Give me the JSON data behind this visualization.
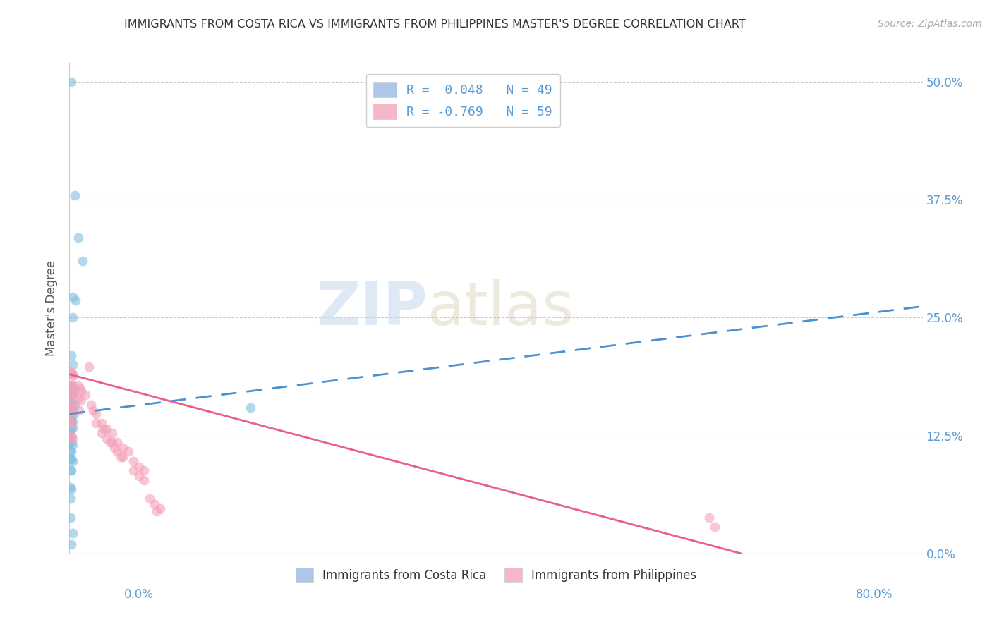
{
  "title": "IMMIGRANTS FROM COSTA RICA VS IMMIGRANTS FROM PHILIPPINES MASTER'S DEGREE CORRELATION CHART",
  "source": "Source: ZipAtlas.com",
  "ylabel": "Master's Degree",
  "yticks": [
    0.0,
    0.125,
    0.25,
    0.375,
    0.5
  ],
  "ytick_labels": [
    "0.0%",
    "12.5%",
    "25.0%",
    "37.5%",
    "50.0%"
  ],
  "xlim": [
    0.0,
    0.8
  ],
  "ylim": [
    0.0,
    0.52
  ],
  "watermark_text": "ZIP",
  "watermark_text2": "atlas",
  "costa_rica_color": "#7fbfdf",
  "philippines_color": "#f4a0b8",
  "costa_rica_line_color": "#4a90d4",
  "philippines_line_color": "#e8608a",
  "cr_line_x": [
    0.0,
    0.8
  ],
  "cr_line_y": [
    0.148,
    0.262
  ],
  "ph_line_x": [
    0.0,
    0.63
  ],
  "ph_line_y": [
    0.19,
    0.0
  ],
  "legend_label1": "R =  0.048   N = 49",
  "legend_label2": "R = -0.769   N = 59",
  "legend_color1": "#aec6e8",
  "legend_color2": "#f4b8c8",
  "bottom_label1": "Immigrants from Costa Rica",
  "bottom_label2": "Immigrants from Philippines",
  "costa_rica_points": [
    [
      0.002,
      0.5
    ],
    [
      0.005,
      0.38
    ],
    [
      0.008,
      0.335
    ],
    [
      0.012,
      0.31
    ],
    [
      0.003,
      0.272
    ],
    [
      0.006,
      0.268
    ],
    [
      0.003,
      0.25
    ],
    [
      0.002,
      0.21
    ],
    [
      0.003,
      0.2
    ],
    [
      0.001,
      0.178
    ],
    [
      0.002,
      0.175
    ],
    [
      0.004,
      0.175
    ],
    [
      0.001,
      0.168
    ],
    [
      0.002,
      0.168
    ],
    [
      0.003,
      0.168
    ],
    [
      0.001,
      0.16
    ],
    [
      0.002,
      0.16
    ],
    [
      0.005,
      0.158
    ],
    [
      0.001,
      0.153
    ],
    [
      0.002,
      0.153
    ],
    [
      0.003,
      0.153
    ],
    [
      0.001,
      0.147
    ],
    [
      0.002,
      0.147
    ],
    [
      0.004,
      0.147
    ],
    [
      0.001,
      0.14
    ],
    [
      0.002,
      0.14
    ],
    [
      0.003,
      0.14
    ],
    [
      0.001,
      0.133
    ],
    [
      0.002,
      0.133
    ],
    [
      0.003,
      0.133
    ],
    [
      0.001,
      0.125
    ],
    [
      0.002,
      0.125
    ],
    [
      0.001,
      0.118
    ],
    [
      0.002,
      0.118
    ],
    [
      0.003,
      0.115
    ],
    [
      0.001,
      0.108
    ],
    [
      0.002,
      0.108
    ],
    [
      0.001,
      0.1
    ],
    [
      0.002,
      0.1
    ],
    [
      0.003,
      0.098
    ],
    [
      0.001,
      0.088
    ],
    [
      0.002,
      0.088
    ],
    [
      0.001,
      0.07
    ],
    [
      0.002,
      0.068
    ],
    [
      0.001,
      0.058
    ],
    [
      0.17,
      0.155
    ],
    [
      0.001,
      0.038
    ],
    [
      0.003,
      0.022
    ],
    [
      0.002,
      0.01
    ]
  ],
  "philippines_points": [
    [
      0.001,
      0.192
    ],
    [
      0.002,
      0.192
    ],
    [
      0.003,
      0.188
    ],
    [
      0.004,
      0.19
    ],
    [
      0.001,
      0.178
    ],
    [
      0.002,
      0.178
    ],
    [
      0.003,
      0.178
    ],
    [
      0.001,
      0.168
    ],
    [
      0.002,
      0.168
    ],
    [
      0.003,
      0.168
    ],
    [
      0.001,
      0.158
    ],
    [
      0.002,
      0.158
    ],
    [
      0.003,
      0.155
    ],
    [
      0.001,
      0.148
    ],
    [
      0.002,
      0.148
    ],
    [
      0.001,
      0.138
    ],
    [
      0.002,
      0.138
    ],
    [
      0.001,
      0.125
    ],
    [
      0.002,
      0.123
    ],
    [
      0.003,
      0.122
    ],
    [
      0.008,
      0.178
    ],
    [
      0.01,
      0.175
    ],
    [
      0.011,
      0.172
    ],
    [
      0.008,
      0.165
    ],
    [
      0.01,
      0.162
    ],
    [
      0.009,
      0.152
    ],
    [
      0.015,
      0.168
    ],
    [
      0.018,
      0.198
    ],
    [
      0.02,
      0.158
    ],
    [
      0.022,
      0.152
    ],
    [
      0.025,
      0.148
    ],
    [
      0.025,
      0.138
    ],
    [
      0.03,
      0.138
    ],
    [
      0.03,
      0.128
    ],
    [
      0.032,
      0.132
    ],
    [
      0.035,
      0.132
    ],
    [
      0.035,
      0.122
    ],
    [
      0.038,
      0.118
    ],
    [
      0.04,
      0.128
    ],
    [
      0.04,
      0.118
    ],
    [
      0.042,
      0.112
    ],
    [
      0.045,
      0.118
    ],
    [
      0.045,
      0.108
    ],
    [
      0.048,
      0.102
    ],
    [
      0.05,
      0.112
    ],
    [
      0.05,
      0.102
    ],
    [
      0.055,
      0.108
    ],
    [
      0.06,
      0.098
    ],
    [
      0.06,
      0.088
    ],
    [
      0.065,
      0.092
    ],
    [
      0.065,
      0.082
    ],
    [
      0.07,
      0.088
    ],
    [
      0.07,
      0.078
    ],
    [
      0.075,
      0.058
    ],
    [
      0.08,
      0.052
    ],
    [
      0.085,
      0.048
    ],
    [
      0.6,
      0.038
    ],
    [
      0.605,
      0.028
    ],
    [
      0.082,
      0.045
    ]
  ]
}
